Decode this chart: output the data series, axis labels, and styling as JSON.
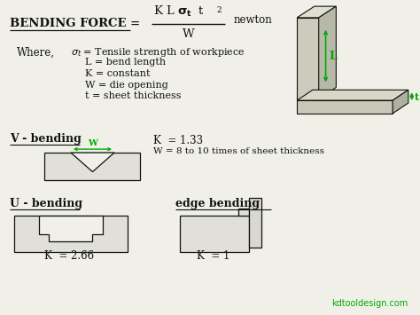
{
  "bg_color": "#f0f0e8",
  "text_color": "#111111",
  "green_color": "#00aa00",
  "watermark": "kdtooldesign.com",
  "v_k": "K  = 1.33",
  "v_w": "W = 8 to 10 times of sheet thickness",
  "u_k": "K  = 2.66",
  "edge_k": "K  = 1"
}
